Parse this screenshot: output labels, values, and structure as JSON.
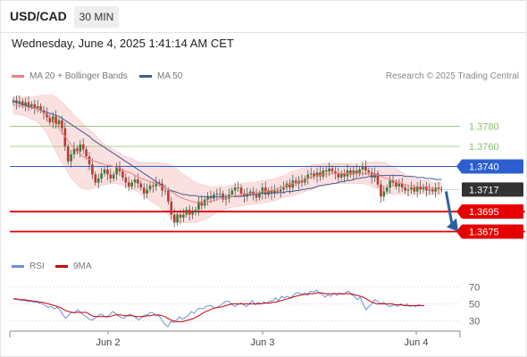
{
  "header": {
    "symbol": "USD/CAD",
    "timeframe": "30 MIN",
    "datetime": "Wednesday, June 4, 2025 1:41:14 AM CET"
  },
  "legend": {
    "ma20_label": "MA 20 + Bollinger Bands",
    "ma50_label": "MA 50",
    "credit": "Research © 2025 Trading Central"
  },
  "rsi_legend": {
    "rsi_label": "RSI",
    "ma_label": "9MA"
  },
  "colors": {
    "ma20": "#f08080",
    "bands_fill": "#fadada",
    "ma50": "#3e5c99",
    "up_candle": "#3a7d3a",
    "down_candle": "#c0392b",
    "resistance": "#8cc06a",
    "pivot": "#2d5fd0",
    "support": "#e60000",
    "last_price": "#333333",
    "rsi": "#6a8fd8",
    "rsi_ma": "#cc0000",
    "arrow": "#2d5fa0"
  },
  "chart_data": [
    {
      "type": "candlestick",
      "title": "USD/CAD 30 MIN",
      "x_ticks": [
        "Jun 2",
        "Jun 3",
        "Jun 4"
      ],
      "ylim": [
        1.3655,
        1.3817
      ],
      "levels": [
        {
          "label": "1.3780",
          "value": 1.378,
          "kind": "resistance"
        },
        {
          "label": "1.3760",
          "value": 1.376,
          "kind": "resistance"
        },
        {
          "label": "1.3740",
          "value": 1.374,
          "kind": "pivot"
        },
        {
          "label": "1.3717",
          "value": 1.3717,
          "kind": "last"
        },
        {
          "label": "1.3695",
          "value": 1.3695,
          "kind": "support"
        },
        {
          "label": "1.3675",
          "value": 1.3675,
          "kind": "support"
        }
      ],
      "close": [
        1.3806,
        1.3803,
        1.3805,
        1.3801,
        1.3804,
        1.38,
        1.3802,
        1.3798,
        1.38,
        1.3796,
        1.3793,
        1.3789,
        1.3784,
        1.379,
        1.3782,
        1.3786,
        1.3778,
        1.376,
        1.3745,
        1.3752,
        1.3758,
        1.3755,
        1.3762,
        1.3757,
        1.375,
        1.3742,
        1.3732,
        1.3724,
        1.3728,
        1.3733,
        1.3737,
        1.3732,
        1.3728,
        1.3732,
        1.3739,
        1.3735,
        1.3729,
        1.3724,
        1.372,
        1.3724,
        1.3727,
        1.3723,
        1.3719,
        1.3713,
        1.3717,
        1.3721,
        1.372,
        1.3724,
        1.3723,
        1.3716,
        1.3716,
        1.3705,
        1.3692,
        1.3684,
        1.3692,
        1.3689,
        1.3692,
        1.3697,
        1.3692,
        1.3694,
        1.3697,
        1.3705,
        1.3701,
        1.3707,
        1.371,
        1.3708,
        1.3712,
        1.3713,
        1.3713,
        1.3707,
        1.3708,
        1.3712,
        1.3716,
        1.3719,
        1.3719,
        1.3713,
        1.371,
        1.3713,
        1.3715,
        1.3712,
        1.3709,
        1.3713,
        1.3719,
        1.3712,
        1.3716,
        1.3713,
        1.3716,
        1.3715,
        1.3717,
        1.3719,
        1.3723,
        1.3719,
        1.3726,
        1.3723,
        1.3726,
        1.3724,
        1.3728,
        1.3732,
        1.3733,
        1.373,
        1.3734,
        1.373,
        1.3736,
        1.3735,
        1.3738,
        1.3735,
        1.3733,
        1.3729,
        1.3733,
        1.373,
        1.3736,
        1.3732,
        1.3736,
        1.3733,
        1.3737,
        1.374,
        1.3736,
        1.3734,
        1.3729,
        1.3733,
        1.3722,
        1.371,
        1.3715,
        1.3719,
        1.3726,
        1.3724,
        1.372,
        1.3723,
        1.3719,
        1.3716,
        1.3717,
        1.3719,
        1.3715,
        1.372,
        1.3717,
        1.372,
        1.3716,
        1.3717,
        1.3715,
        1.3719,
        1.3717,
        1.3717
      ],
      "ma20": [
        1.3801,
        1.3801,
        1.3801,
        1.38,
        1.38,
        1.3799,
        1.3798,
        1.3798,
        1.3797,
        1.3796,
        1.3794,
        1.3792,
        1.3789,
        1.3786,
        1.3782,
        1.3778,
        1.3774,
        1.377,
        1.3766,
        1.3762,
        1.3758,
        1.3755,
        1.3752,
        1.375,
        1.3748,
        1.3747,
        1.3746,
        1.3745,
        1.3744,
        1.3743,
        1.3742,
        1.3741,
        1.3741,
        1.374,
        1.3739,
        1.3738,
        1.3736,
        1.3735,
        1.3734,
        1.3733,
        1.3731,
        1.373,
        1.3728,
        1.3727,
        1.3726,
        1.3725,
        1.3724,
        1.3723,
        1.3722,
        1.372,
        1.3719,
        1.3717,
        1.3715,
        1.3713,
        1.3711,
        1.3709,
        1.3708,
        1.3707,
        1.3706,
        1.3705,
        1.3704,
        1.3704,
        1.3704,
        1.3704,
        1.3705,
        1.3705,
        1.3706,
        1.3707,
        1.3708,
        1.3708,
        1.3709,
        1.371,
        1.371,
        1.3711,
        1.3711,
        1.3712,
        1.3712,
        1.3713,
        1.3713,
        1.3713,
        1.3714,
        1.3714,
        1.3715,
        1.3715,
        1.3716,
        1.3716,
        1.3717,
        1.3718,
        1.3719,
        1.372,
        1.3721,
        1.3722,
        1.3723,
        1.3724,
        1.3725,
        1.3726,
        1.3727,
        1.3728,
        1.3729,
        1.373,
        1.3731,
        1.3731,
        1.3732,
        1.3732,
        1.3733,
        1.3733,
        1.3733,
        1.3733,
        1.3733,
        1.3733,
        1.3733,
        1.3733,
        1.3733,
        1.3733,
        1.3733,
        1.3733,
        1.3733,
        1.3733,
        1.3732,
        1.3732,
        1.3731,
        1.373,
        1.3729,
        1.3728,
        1.3727,
        1.3726,
        1.3725,
        1.3724,
        1.3723,
        1.3722,
        1.3721,
        1.3721,
        1.372,
        1.372,
        1.372,
        1.3719,
        1.3719,
        1.3719,
        1.3718,
        1.3718,
        1.3718,
        1.3718
      ],
      "ma50": [
        1.3805,
        1.3804,
        1.3803,
        1.3802,
        1.3801,
        1.38,
        1.3799,
        1.3798,
        1.3797,
        1.3796,
        1.3795,
        1.3794,
        1.3793,
        1.3792,
        1.3791,
        1.379,
        1.3788,
        1.3786,
        1.3784,
        1.3782,
        1.378,
        1.3778,
        1.3776,
        1.3774,
        1.3772,
        1.377,
        1.3767,
        1.3765,
        1.3763,
        1.3761,
        1.3759,
        1.3757,
        1.3755,
        1.3753,
        1.3751,
        1.3749,
        1.3747,
        1.3745,
        1.3743,
        1.3741,
        1.3739,
        1.3737,
        1.3735,
        1.3733,
        1.3731,
        1.3729,
        1.3727,
        1.3725,
        1.3723,
        1.3721,
        1.3719,
        1.3717,
        1.3716,
        1.3715,
        1.3714,
        1.3713,
        1.3712,
        1.3712,
        1.3711,
        1.3711,
        1.3711,
        1.371,
        1.371,
        1.371,
        1.371,
        1.371,
        1.371,
        1.371,
        1.371,
        1.371,
        1.371,
        1.371,
        1.371,
        1.371,
        1.371,
        1.371,
        1.3711,
        1.3711,
        1.3712,
        1.3712,
        1.3712,
        1.3713,
        1.3713,
        1.3713,
        1.3713,
        1.3713,
        1.3714,
        1.3714,
        1.3714,
        1.3714,
        1.3715,
        1.3715,
        1.3715,
        1.3716,
        1.3716,
        1.3717,
        1.3717,
        1.3718,
        1.3718,
        1.3719,
        1.372,
        1.3721,
        1.3721,
        1.3722,
        1.3722,
        1.3723,
        1.3723,
        1.3724,
        1.3725,
        1.3725,
        1.3726,
        1.3726,
        1.3727,
        1.3728,
        1.3728,
        1.3729,
        1.3729,
        1.373,
        1.373,
        1.373,
        1.3731,
        1.3731,
        1.3731,
        1.3731,
        1.3731,
        1.3731,
        1.3731,
        1.3731,
        1.3731,
        1.373,
        1.373,
        1.373,
        1.373,
        1.3729,
        1.3729,
        1.3729,
        1.3728,
        1.3728,
        1.3728,
        1.3727,
        1.3727,
        1.3727
      ],
      "bb_width": [
        0.0009,
        0.0009,
        0.0009,
        0.0009,
        0.001,
        0.001,
        0.0011,
        0.0012,
        0.0013,
        0.0015,
        0.0017,
        0.0019,
        0.0022,
        0.0025,
        0.0027,
        0.0029,
        0.003,
        0.0031,
        0.0032,
        0.0033,
        0.0033,
        0.0033,
        0.0033,
        0.0032,
        0.0031,
        0.003,
        0.0028,
        0.0026,
        0.0024,
        0.0022,
        0.002,
        0.0019,
        0.0018,
        0.0017,
        0.0016,
        0.0016,
        0.0015,
        0.0015,
        0.0015,
        0.0015,
        0.0015,
        0.0015,
        0.0016,
        0.0017,
        0.0018,
        0.0019,
        0.002,
        0.0021,
        0.0022,
        0.0023,
        0.0024,
        0.0025,
        0.0026,
        0.0026,
        0.0026,
        0.0025,
        0.0024,
        0.0023,
        0.0022,
        0.0021,
        0.002,
        0.0019,
        0.0018,
        0.0017,
        0.0016,
        0.0015,
        0.0014,
        0.0013,
        0.0012,
        0.0012,
        0.0011,
        0.0011,
        0.0011,
        0.0011,
        0.0011,
        0.0011,
        0.0011,
        0.0011,
        0.0011,
        0.0011,
        0.0011,
        0.0011,
        0.0011,
        0.0011,
        0.0011,
        0.0011,
        0.0011,
        0.0011,
        0.0011,
        0.0011,
        0.0011,
        0.0012,
        0.0012,
        0.0012,
        0.0012,
        0.0012,
        0.0012,
        0.0012,
        0.0012,
        0.0012,
        0.0011,
        0.0011,
        0.0011,
        0.0011,
        0.001,
        0.001,
        0.001,
        0.001,
        0.001,
        0.001,
        0.001,
        0.001,
        0.001,
        0.001,
        0.001,
        0.001,
        0.0011,
        0.0011,
        0.0012,
        0.0013,
        0.0014,
        0.0014,
        0.0015,
        0.0015,
        0.0014,
        0.0014,
        0.0013,
        0.0012,
        0.0011,
        0.001,
        0.001,
        0.0009,
        0.0008,
        0.0008,
        0.0007,
        0.0007,
        0.0007,
        0.0007,
        0.0006,
        0.0006,
        0.0006,
        0.0006
      ],
      "forecast_target": 1.3675
    },
    {
      "type": "line",
      "title": "RSI",
      "ylim": [
        20,
        80
      ],
      "y_ticks": [
        "70",
        "50",
        "30"
      ],
      "series": [
        {
          "name": "RSI",
          "values": [
            56,
            55,
            55,
            54,
            54,
            53,
            53,
            52,
            52,
            51,
            50,
            48,
            46,
            47,
            44,
            46,
            43,
            37,
            33,
            37,
            40,
            39,
            43,
            40,
            37,
            35,
            32,
            31,
            33,
            36,
            38,
            36,
            34,
            37,
            41,
            39,
            36,
            34,
            33,
            36,
            38,
            36,
            34,
            31,
            34,
            37,
            37,
            40,
            39,
            36,
            36,
            31,
            26,
            23,
            29,
            28,
            31,
            35,
            32,
            34,
            36,
            41,
            39,
            43,
            45,
            44,
            47,
            48,
            48,
            45,
            46,
            48,
            51,
            53,
            53,
            49,
            47,
            49,
            51,
            49,
            47,
            50,
            54,
            49,
            52,
            50,
            52,
            51,
            53,
            54,
            57,
            54,
            59,
            57,
            59,
            57,
            60,
            63,
            63,
            61,
            63,
            60,
            65,
            64,
            66,
            63,
            61,
            58,
            61,
            59,
            63,
            60,
            63,
            61,
            63,
            65,
            61,
            59,
            55,
            58,
            50,
            43,
            47,
            50,
            55,
            53,
            50,
            52,
            49,
            47,
            48,
            49,
            47,
            50,
            48,
            50,
            47,
            48,
            47,
            49,
            48,
            48
          ]
        },
        {
          "name": "9MA",
          "values": [
            56,
            56,
            55,
            55,
            55,
            54,
            54,
            53,
            53,
            52,
            52,
            51,
            50,
            49,
            48,
            47,
            46,
            44,
            42,
            41,
            40,
            40,
            40,
            40,
            40,
            40,
            38,
            36,
            35,
            35,
            35,
            35,
            35,
            35,
            36,
            37,
            37,
            37,
            36,
            36,
            36,
            36,
            35,
            35,
            35,
            35,
            36,
            36,
            37,
            37,
            37,
            36,
            35,
            33,
            31,
            30,
            29,
            29,
            29,
            30,
            31,
            32,
            33,
            35,
            37,
            39,
            41,
            42,
            44,
            45,
            46,
            46,
            47,
            48,
            49,
            50,
            50,
            50,
            50,
            50,
            50,
            50,
            50,
            50,
            50,
            50,
            51,
            51,
            51,
            52,
            52,
            53,
            54,
            55,
            56,
            57,
            58,
            59,
            60,
            61,
            61,
            62,
            62,
            62,
            63,
            63,
            63,
            62,
            62,
            62,
            62,
            62,
            62,
            62,
            62,
            62,
            62,
            61,
            60,
            59,
            58,
            56,
            54,
            52,
            51,
            50,
            50,
            50,
            50,
            50,
            50,
            49,
            49,
            49,
            48,
            48,
            48,
            48,
            48,
            48,
            48,
            48
          ]
        }
      ]
    }
  ]
}
